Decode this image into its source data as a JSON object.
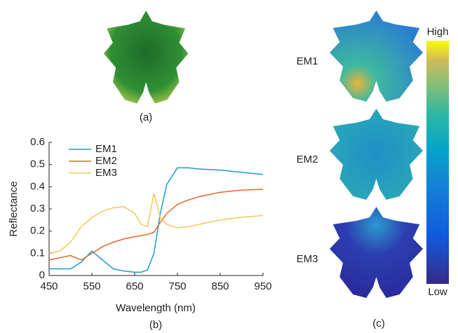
{
  "chart_data": {
    "type": "line",
    "x_label": "Wavelength (nm)",
    "y_label": "Reflectance",
    "x": [
      450,
      475,
      500,
      525,
      550,
      575,
      600,
      625,
      650,
      665,
      680,
      695,
      710,
      725,
      750,
      775,
      800,
      850,
      900,
      950
    ],
    "series": [
      {
        "name": "EM1",
        "color": "#1f9bc7",
        "values": [
          0.03,
          0.03,
          0.03,
          0.06,
          0.11,
          0.07,
          0.03,
          0.02,
          0.015,
          0.015,
          0.025,
          0.1,
          0.28,
          0.41,
          0.485,
          0.485,
          0.48,
          0.475,
          0.465,
          0.455
        ]
      },
      {
        "name": "EM2",
        "color": "#e4672a",
        "values": [
          0.07,
          0.08,
          0.09,
          0.07,
          0.1,
          0.13,
          0.15,
          0.165,
          0.175,
          0.18,
          0.185,
          0.195,
          0.24,
          0.28,
          0.32,
          0.34,
          0.355,
          0.375,
          0.385,
          0.388
        ]
      },
      {
        "name": "EM3",
        "color": "#f4c85a",
        "values": [
          0.1,
          0.11,
          0.15,
          0.22,
          0.26,
          0.29,
          0.305,
          0.31,
          0.28,
          0.23,
          0.22,
          0.37,
          0.26,
          0.23,
          0.215,
          0.22,
          0.23,
          0.25,
          0.263,
          0.27
        ]
      }
    ],
    "xlim": [
      450,
      950
    ],
    "xticks": [
      450,
      550,
      650,
      750,
      850,
      950
    ],
    "ylim": [
      0,
      0.6
    ],
    "yticks": [
      0,
      0.1,
      0.2,
      0.3,
      0.4,
      0.5,
      0.6
    ],
    "legend": "top-left"
  },
  "panel_labels": [
    "(a)",
    "(b)",
    "(c)"
  ],
  "maps": {
    "labels": [
      "EM1",
      "EM2",
      "EM3"
    ],
    "colorbar": {
      "high": "High",
      "low": "Low"
    }
  }
}
